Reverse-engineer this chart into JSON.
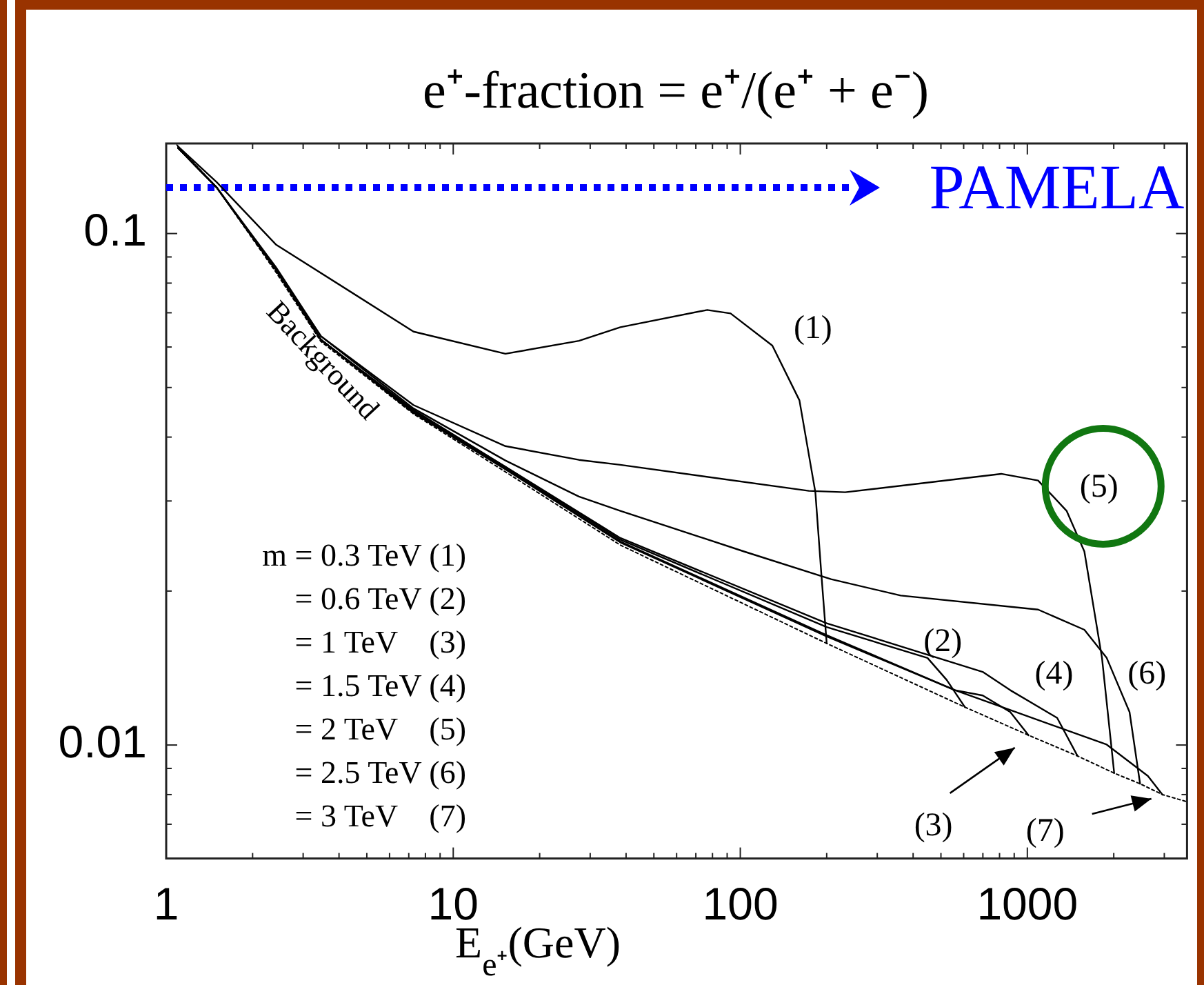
{
  "chart_data": {
    "type": "line",
    "title": "e⁺-fraction = e⁺/(e⁺ + e⁻)",
    "xlabel": "E$_{e⁺}$(GeV)",
    "log": "xy",
    "grid": false,
    "marker": "none",
    "xlim": [
      1,
      3600
    ],
    "ylim": [
      0.006,
      0.15
    ],
    "xticks": [
      1,
      {
        "value": 2,
        "label": null
      },
      {
        "value": 3,
        "label": null
      },
      {
        "value": 4,
        "label": null
      },
      {
        "value": 5,
        "label": null
      },
      {
        "value": 6,
        "label": null
      },
      {
        "value": 7,
        "label": null
      },
      {
        "value": 8,
        "label": null
      },
      {
        "value": 9,
        "label": null
      },
      10,
      {
        "value": 20,
        "label": null
      },
      {
        "value": 30,
        "label": null
      },
      {
        "value": 40,
        "label": null
      },
      {
        "value": 50,
        "label": null
      },
      {
        "value": 60,
        "label": null
      },
      {
        "value": 70,
        "label": null
      },
      {
        "value": 80,
        "label": null
      },
      {
        "value": 90,
        "label": null
      },
      100,
      {
        "value": 200,
        "label": null
      },
      {
        "value": 300,
        "label": null
      },
      {
        "value": 400,
        "label": null
      },
      {
        "value": 500,
        "label": null
      },
      {
        "value": 600,
        "label": null
      },
      {
        "value": 700,
        "label": null
      },
      {
        "value": 800,
        "label": null
      },
      {
        "value": 900,
        "label": null
      },
      1000,
      {
        "value": 2000,
        "label": null
      },
      {
        "value": 3000,
        "label": null
      }
    ],
    "yticks": [
      {
        "value": 0.007,
        "label": null
      },
      {
        "value": 0.008,
        "label": null
      },
      {
        "value": 0.009,
        "label": null
      },
      0.01,
      {
        "value": 0.02,
        "label": null
      },
      {
        "value": 0.03,
        "label": null
      },
      {
        "value": 0.04,
        "label": null
      },
      {
        "value": 0.05,
        "label": null
      },
      {
        "value": 0.06,
        "label": null
      },
      {
        "value": 0.07,
        "label": null
      },
      {
        "value": 0.08,
        "label": null
      },
      {
        "value": 0.09,
        "label": null
      },
      0.1
    ],
    "ref_lines": [
      {
        "axis": "y",
        "value": 0.123,
        "label": "PAMELA",
        "color": "#0000ff",
        "line_style": "dotted"
      }
    ],
    "annotations": [
      "m = 0.3 TeV (1)",
      "= 0.6 TeV (2)",
      "= 1 TeV    (3)",
      "= 1.5 TeV (4)",
      "= 2 TeV    (5)",
      "= 2.5 TeV (6)",
      "= 3 TeV    (7)"
    ],
    "series": [
      {
        "name": "Background",
        "color": "#000000",
        "line_style": "dotted",
        "x": [
          1.09,
          1.5,
          2.41,
          3.46,
          7.27,
          15.2,
          38.2,
          200,
          606,
          1010,
          1495,
          2007,
          2470,
          2955,
          3590
        ],
        "values": [
          0.149,
          0.123,
          0.0841,
          0.0615,
          0.0444,
          0.0342,
          0.0246,
          0.0158,
          0.01186,
          0.01045,
          0.00952,
          0.00881,
          0.0084,
          0.008,
          0.00775
        ]
      },
      {
        "name": "(1)",
        "color": "#000000",
        "x": [
          1.1,
          1.5,
          2.41,
          7.27,
          15.2,
          27.4,
          38.2,
          76.7,
          92.5,
          129.3,
          160.7,
          182.6,
          191.7,
          200
        ],
        "values": [
          0.148,
          0.126,
          0.0952,
          0.0643,
          0.0582,
          0.0617,
          0.0656,
          0.0709,
          0.0698,
          0.0604,
          0.0472,
          0.0312,
          0.0215,
          0.0158
        ]
      },
      {
        "name": "(2)",
        "color": "#000000",
        "x": [
          1.1,
          1.5,
          2.41,
          3.46,
          7.27,
          15.2,
          38.2,
          200,
          449,
          524,
          606
        ],
        "values": [
          0.147,
          0.123,
          0.085,
          0.062,
          0.045,
          0.035,
          0.0252,
          0.017,
          0.0148,
          0.0134,
          0.01186
        ]
      },
      {
        "name": "(3)",
        "color": "#000000",
        "x": [
          1.1,
          1.5,
          2.41,
          3.46,
          7.27,
          15.2,
          38.2,
          200,
          560,
          699,
          872,
          1010
        ],
        "values": [
          0.147,
          0.123,
          0.085,
          0.062,
          0.0447,
          0.0348,
          0.025,
          0.0164,
          0.0128,
          0.0125,
          0.0116,
          0.01045
        ]
      },
      {
        "name": "(4)",
        "color": "#000000",
        "x": [
          1.1,
          1.5,
          2.41,
          3.46,
          7.27,
          15.2,
          38.2,
          200,
          699,
          872,
          1270,
          1495
        ],
        "values": [
          0.147,
          0.123,
          0.085,
          0.062,
          0.0452,
          0.035,
          0.0254,
          0.0173,
          0.0139,
          0.0128,
          0.0113,
          0.00952
        ]
      },
      {
        "name": "(5)",
        "color": "#000000",
        "x": [
          1.1,
          1.5,
          2.41,
          3.46,
          7.27,
          15.2,
          27.4,
          38.2,
          173.3,
          232,
          811,
          1090,
          1370,
          1580,
          1820,
          2007
        ],
        "values": [
          0.147,
          0.123,
          0.086,
          0.063,
          0.0462,
          0.0384,
          0.0361,
          0.0353,
          0.0314,
          0.0312,
          0.0339,
          0.0329,
          0.0287,
          0.0239,
          0.0148,
          0.00881
        ]
      },
      {
        "name": "(6)",
        "color": "#000000",
        "x": [
          1.1,
          1.5,
          2.41,
          3.46,
          7.27,
          15.2,
          27.4,
          38.2,
          103,
          207,
          362,
          1090,
          1580,
          1890,
          2270,
          2470
        ],
        "values": [
          0.147,
          0.123,
          0.085,
          0.063,
          0.0455,
          0.036,
          0.0306,
          0.0287,
          0.0239,
          0.0211,
          0.0196,
          0.0184,
          0.0168,
          0.0148,
          0.0116,
          0.0084
        ]
      },
      {
        "name": "(7)",
        "color": "#000000",
        "x": [
          1.1,
          1.5,
          2.41,
          3.46,
          7.27,
          15.2,
          38.2,
          200,
          560,
          1890,
          2630,
          2955
        ],
        "values": [
          0.147,
          0.123,
          0.085,
          0.062,
          0.0446,
          0.0346,
          0.0249,
          0.0163,
          0.0128,
          0.01002,
          0.0087,
          0.008
        ]
      }
    ]
  }
}
